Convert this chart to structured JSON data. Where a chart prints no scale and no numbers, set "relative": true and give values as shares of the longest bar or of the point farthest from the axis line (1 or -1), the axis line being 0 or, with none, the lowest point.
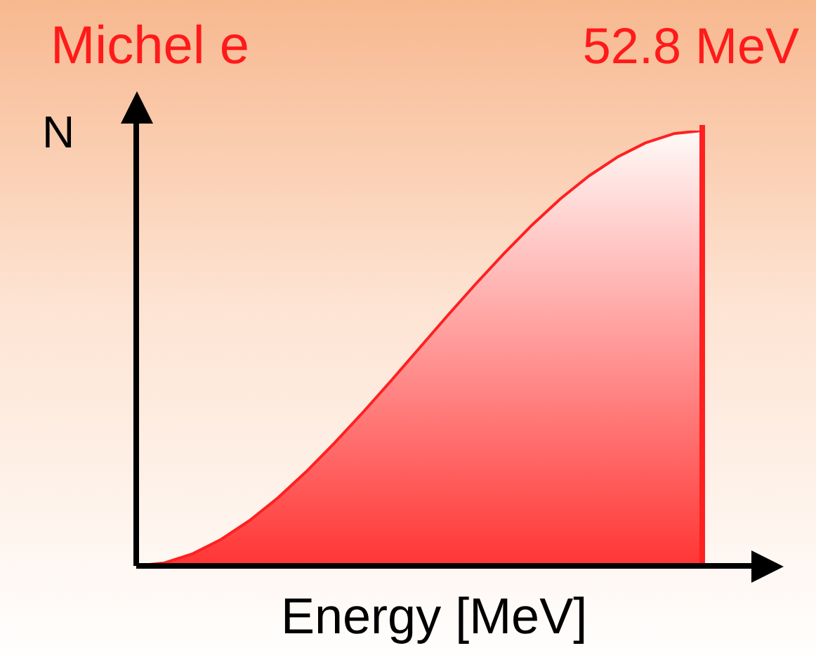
{
  "chart_data": {
    "type": "area",
    "title": "Michel e",
    "xlabel": "Energy [MeV]",
    "ylabel": "N",
    "annotations": [
      "52.8 MeV"
    ],
    "relative": true,
    "categories": [
      null,
      null,
      null,
      null,
      null,
      null,
      null,
      null,
      null,
      null,
      null,
      null,
      null,
      null,
      null,
      null,
      null,
      null,
      null,
      null,
      null
    ],
    "series": [
      {
        "color": "#ff2020",
        "values": [
          0,
          0.007,
          0.028,
          0.061,
          0.104,
          0.156,
          0.216,
          0.282,
          0.352,
          0.425,
          0.5,
          0.575,
          0.648,
          0.718,
          0.784,
          0.844,
          0.896,
          0.939,
          0.972,
          0.993,
          1
        ]
      }
    ],
    "legend": false
  }
}
